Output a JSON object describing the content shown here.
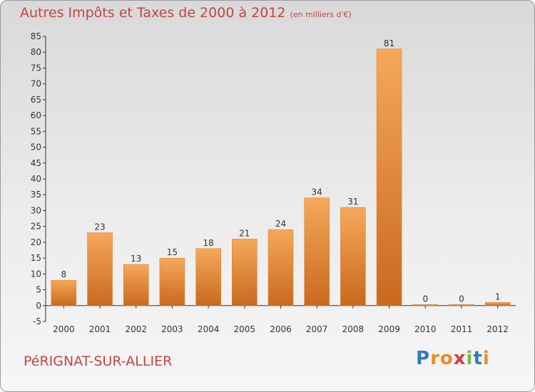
{
  "header": {
    "title": "Autres Impôts et Taxes de 2000 à 2012",
    "unit": "(en milliers d'€)"
  },
  "footer": {
    "commune": "PéRIGNAT-SUR-ALLIER",
    "logo_letters": [
      "P",
      "r",
      "o",
      "x",
      "i",
      "t",
      "i"
    ],
    "logo_colors": [
      "#2b7cc9",
      "#f08a24",
      "#f08a24",
      "#d93a3a",
      "#7ab648",
      "#2b7cc9",
      "#f08a24"
    ]
  },
  "colors": {
    "title": "#c24545",
    "bar": "#e8893a",
    "bar_dark": "#c9691e",
    "axis": "#333333"
  },
  "chart_data": {
    "type": "bar",
    "categories": [
      "2000",
      "2001",
      "2002",
      "2003",
      "2004",
      "2005",
      "2006",
      "2007",
      "2008",
      "2009",
      "2010",
      "2011",
      "2012"
    ],
    "values": [
      8,
      23,
      13,
      15,
      18,
      21,
      24,
      34,
      31,
      81,
      0,
      0,
      1
    ],
    "data_labels": [
      "8",
      "23",
      "13",
      "15",
      "18",
      "21",
      "24",
      "34",
      "31",
      "81",
      "0",
      "0",
      "1"
    ],
    "title": "Autres Impôts et Taxes de 2000 à 2012",
    "xlabel": "",
    "ylabel": "",
    "ylim": [
      -5,
      85
    ],
    "yticks": [
      -5,
      0,
      5,
      10,
      15,
      20,
      25,
      30,
      35,
      40,
      45,
      50,
      55,
      60,
      65,
      70,
      75,
      80,
      85
    ],
    "grid": false,
    "legend": "none"
  }
}
